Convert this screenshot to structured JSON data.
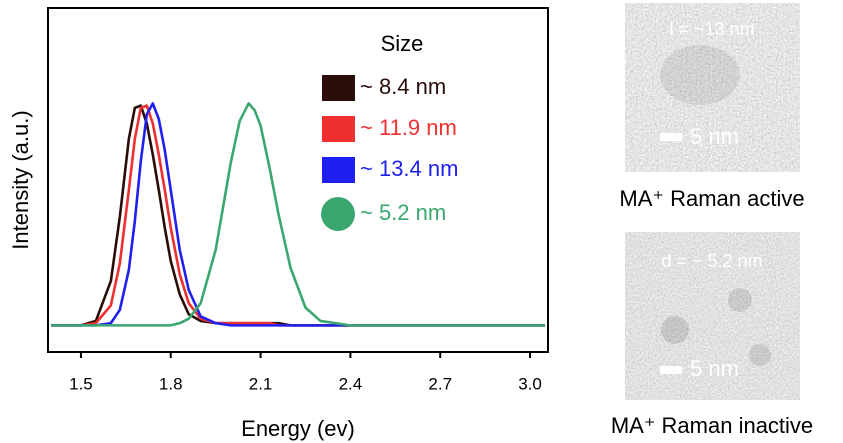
{
  "chart_data": {
    "type": "line",
    "xlabel": "Energy (ev)",
    "ylabel": "Intensity (a.u.)",
    "legend_title": "Size",
    "x": [
      1.4,
      1.5,
      1.55,
      1.6,
      1.63,
      1.66,
      1.68,
      1.7,
      1.72,
      1.74,
      1.76,
      1.78,
      1.8,
      1.83,
      1.86,
      1.9,
      1.95,
      2.0,
      2.03,
      2.06,
      2.08,
      2.1,
      2.13,
      2.16,
      2.2,
      2.25,
      2.3,
      2.4,
      2.6,
      3.05
    ],
    "series": [
      {
        "name": "~ 8.4 nm",
        "color": "#2a0c08",
        "marker": "square",
        "values": [
          0,
          0,
          0.02,
          0.2,
          0.49,
          0.84,
          0.98,
          0.99,
          0.91,
          0.77,
          0.61,
          0.44,
          0.29,
          0.14,
          0.05,
          0.02,
          0.01,
          0.01,
          0.01,
          0.01,
          0.01,
          0.01,
          0.01,
          0.01,
          0,
          0,
          0,
          0,
          0,
          0
        ]
      },
      {
        "name": "~ 11.9 nm",
        "color": "#f03030",
        "marker": "square",
        "values": [
          0,
          0,
          0.01,
          0.09,
          0.28,
          0.61,
          0.84,
          0.98,
          0.99,
          0.91,
          0.77,
          0.61,
          0.44,
          0.23,
          0.1,
          0.03,
          0.01,
          0.01,
          0.01,
          0.01,
          0.01,
          0.01,
          0.01,
          0,
          0,
          0,
          0,
          0,
          0,
          0
        ]
      },
      {
        "name": "~ 13.4 nm",
        "color": "#1f1ff0",
        "marker": "square",
        "values": [
          0,
          0,
          0,
          0.01,
          0.07,
          0.25,
          0.47,
          0.74,
          0.95,
          1.0,
          0.93,
          0.79,
          0.61,
          0.34,
          0.16,
          0.04,
          0.01,
          0,
          0,
          0,
          0,
          0,
          0,
          0,
          0,
          0,
          0,
          0,
          0,
          0
        ]
      },
      {
        "name": "~ 5.2 nm",
        "color": "#3aa86e",
        "marker": "circle",
        "values": [
          0,
          0,
          0,
          0,
          0,
          0,
          0,
          0,
          0,
          0,
          0,
          0,
          0,
          0.01,
          0.03,
          0.1,
          0.34,
          0.73,
          0.92,
          1.0,
          0.97,
          0.9,
          0.71,
          0.5,
          0.26,
          0.08,
          0.02,
          0,
          0,
          0
        ]
      }
    ],
    "xlim": [
      1.39,
      3.06
    ],
    "ylim": [
      -0.12,
      1.43
    ],
    "xticks": [
      1.5,
      1.8,
      2.1,
      2.4,
      2.7,
      {
        "value": 3,
        "label": "3.0"
      }
    ]
  },
  "images": [
    {
      "label": "l = ~13 nm",
      "scale": "5 nm",
      "caption": "MA⁺ Raman active"
    },
    {
      "label": "d = ~ 5.2 nm",
      "scale": "5 nm",
      "caption": "MA⁺ Raman inactive"
    }
  ]
}
